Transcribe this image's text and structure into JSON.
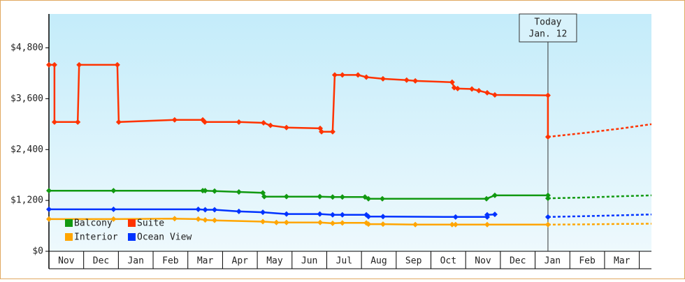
{
  "chart_data": {
    "type": "line",
    "xlim": [
      0,
      17.35
    ],
    "ylim": [
      0,
      5600
    ],
    "yticks": [
      {
        "value": 0,
        "label": "$0"
      },
      {
        "value": 1200,
        "label": "$1,200"
      },
      {
        "value": 2400,
        "label": "$2,400"
      },
      {
        "value": 3600,
        "label": "$3,600"
      },
      {
        "value": 4800,
        "label": "$4,800"
      }
    ],
    "xticks": [
      {
        "value": 0.5,
        "label": "Nov"
      },
      {
        "value": 1.5,
        "label": "Dec"
      },
      {
        "value": 2.5,
        "label": "Jan"
      },
      {
        "value": 3.5,
        "label": "Feb"
      },
      {
        "value": 4.5,
        "label": "Mar"
      },
      {
        "value": 5.5,
        "label": "Apr"
      },
      {
        "value": 6.5,
        "label": "May"
      },
      {
        "value": 7.5,
        "label": "Jun"
      },
      {
        "value": 8.5,
        "label": "Jul"
      },
      {
        "value": 9.5,
        "label": "Aug"
      },
      {
        "value": 10.5,
        "label": "Sep"
      },
      {
        "value": 11.5,
        "label": "Oct"
      },
      {
        "value": 12.5,
        "label": "Nov"
      },
      {
        "value": 13.5,
        "label": "Dec"
      },
      {
        "value": 14.5,
        "label": "Jan"
      },
      {
        "value": 15.5,
        "label": "Feb"
      },
      {
        "value": 16.5,
        "label": "Mar"
      }
    ],
    "annotation": {
      "x": 14.37,
      "title": "Today",
      "date": "Jan. 12"
    },
    "legend": "lower left",
    "series": [
      {
        "name": "Balcony",
        "color": "#119911",
        "x": [
          0,
          1.86,
          4.43,
          4.5,
          4.77,
          5.47,
          6.16,
          6.2,
          6.84,
          7.8,
          8.17,
          8.45,
          9.1,
          9.2,
          9.6,
          12.6,
          12.84,
          14.37,
          14.37
        ],
        "values": [
          1430,
          1430,
          1430,
          1430,
          1420,
          1400,
          1380,
          1290,
          1290,
          1290,
          1280,
          1280,
          1280,
          1240,
          1240,
          1240,
          1320,
          1320,
          1250
        ],
        "forecast": {
          "x": [
            14.37,
            15.5,
            16.5,
            17.35
          ],
          "values": [
            1250,
            1270,
            1300,
            1320
          ]
        }
      },
      {
        "name": "Suite",
        "color": "#ff3300",
        "x": [
          0,
          0.16,
          0.16,
          0.83,
          0.87,
          1.97,
          2.01,
          3.62,
          4.43,
          4.49,
          5.47,
          6.18,
          6.38,
          6.84,
          7.81,
          7.85,
          8.17,
          8.23,
          8.45,
          8.9,
          9.14,
          9.62,
          10.3,
          10.55,
          11.61,
          11.67,
          11.77,
          12.18,
          12.38,
          12.62,
          12.84,
          14.37,
          14.37
        ],
        "values": [
          4400,
          4400,
          3050,
          3050,
          4400,
          4400,
          3050,
          3100,
          3100,
          3050,
          3050,
          3030,
          2970,
          2920,
          2900,
          2820,
          2820,
          4160,
          4160,
          4160,
          4110,
          4070,
          4040,
          4020,
          3990,
          3860,
          3840,
          3830,
          3790,
          3740,
          3690,
          3680,
          2700
        ],
        "forecast": {
          "x": [
            14.37,
            15.5,
            16.5,
            17.35
          ],
          "values": [
            2700,
            2800,
            2900,
            3000
          ]
        }
      },
      {
        "name": "Interior",
        "color": "#ffa500",
        "x": [
          0,
          1.86,
          3.62,
          4.3,
          4.5,
          4.77,
          6.16,
          6.55,
          6.84,
          7.81,
          8.17,
          8.45,
          9.14,
          9.2,
          9.62,
          10.55,
          11.61,
          11.71,
          12.62,
          14.37
        ],
        "values": [
          760,
          760,
          770,
          760,
          740,
          730,
          700,
          680,
          680,
          680,
          660,
          670,
          670,
          640,
          640,
          630,
          630,
          630,
          630,
          630
        ],
        "forecast": {
          "x": [
            14.37,
            15.5,
            16.5,
            17.35
          ],
          "values": [
            630,
            635,
            645,
            650
          ]
        }
      },
      {
        "name": "Ocean View",
        "color": "#0033ff",
        "x": [
          0,
          1.86,
          4.3,
          4.5,
          4.77,
          5.47,
          6.16,
          6.84,
          7.8,
          8.17,
          8.45,
          9.14,
          9.2,
          9.62,
          11.71,
          12.62,
          12.62,
          12.84,
          13.0,
          14.37
        ],
        "values": [
          990,
          990,
          990,
          980,
          980,
          940,
          920,
          880,
          880,
          860,
          860,
          860,
          820,
          820,
          810,
          810,
          860,
          870,
          null,
          810
        ],
        "forecast": {
          "x": [
            14.37,
            15.5,
            16.5,
            17.35
          ],
          "values": [
            810,
            830,
            850,
            870
          ]
        }
      }
    ]
  }
}
